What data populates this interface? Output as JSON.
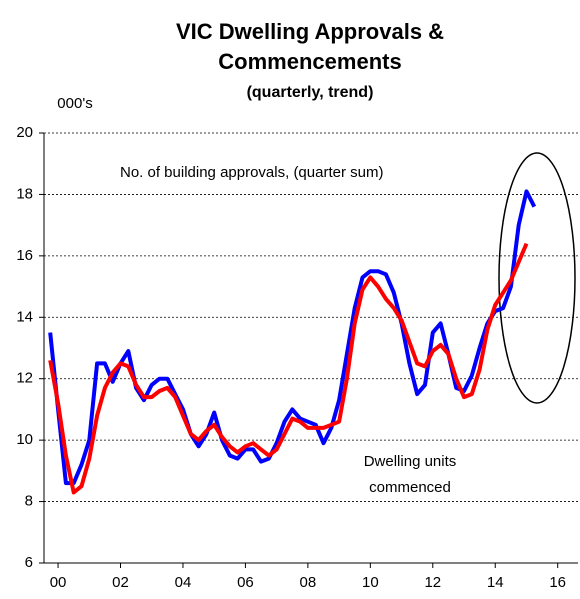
{
  "chart_data": {
    "type": "line",
    "title": [
      "VIC Dwelling Approvals &",
      "Commencements"
    ],
    "subtitle": "(quarterly, trend)",
    "y_label": "000's",
    "x": [
      1999.75,
      2000,
      2000.25,
      2000.5,
      2000.75,
      2001,
      2001.25,
      2001.5,
      2001.75,
      2002,
      2002.25,
      2002.5,
      2002.75,
      2003,
      2003.25,
      2003.5,
      2003.75,
      2004,
      2004.25,
      2004.5,
      2004.75,
      2005,
      2005.25,
      2005.5,
      2005.75,
      2006,
      2006.25,
      2006.5,
      2006.75,
      2007,
      2007.25,
      2007.5,
      2007.75,
      2008,
      2008.25,
      2008.5,
      2008.75,
      2009,
      2009.25,
      2009.5,
      2009.75,
      2010,
      2010.25,
      2010.5,
      2010.75,
      2011,
      2011.25,
      2011.5,
      2011.75,
      2012,
      2012.25,
      2012.5,
      2012.75,
      2013,
      2013.25,
      2013.5,
      2013.75,
      2014,
      2014.25,
      2014.5,
      2014.75,
      2015,
      2015.25
    ],
    "series": [
      {
        "name": "No. of building approvals, (quarter sum)",
        "color": "#0000ff",
        "values": [
          13.5,
          11.0,
          8.6,
          8.6,
          9.2,
          10.0,
          12.5,
          12.5,
          11.9,
          12.5,
          12.9,
          11.7,
          11.3,
          11.8,
          12.0,
          12.0,
          11.5,
          11.0,
          10.2,
          9.8,
          10.2,
          10.9,
          10.0,
          9.5,
          9.4,
          9.7,
          9.7,
          9.3,
          9.4,
          9.9,
          10.6,
          11.0,
          10.7,
          10.6,
          10.5,
          9.9,
          10.4,
          11.3,
          12.8,
          14.3,
          15.3,
          15.5,
          15.5,
          15.4,
          14.8,
          13.8,
          12.5,
          11.5,
          11.8,
          13.5,
          13.8,
          12.8,
          11.7,
          11.6,
          12.1,
          13.0,
          13.8,
          14.2,
          14.3,
          15.0,
          17.0,
          18.1,
          17.6
        ]
      },
      {
        "name": "Dwelling units commenced",
        "color": "#ff0000",
        "values": [
          12.6,
          11.2,
          9.5,
          8.3,
          8.5,
          9.4,
          10.8,
          11.7,
          12.2,
          12.5,
          12.4,
          11.8,
          11.4,
          11.4,
          11.6,
          11.7,
          11.4,
          10.8,
          10.2,
          10.0,
          10.3,
          10.5,
          10.1,
          9.8,
          9.6,
          9.8,
          9.9,
          9.7,
          9.5,
          9.7,
          10.2,
          10.7,
          10.6,
          10.4,
          10.4,
          10.4,
          10.5,
          10.6,
          12.0,
          13.8,
          14.9,
          15.3,
          15.0,
          14.6,
          14.3,
          13.9,
          13.2,
          12.5,
          12.4,
          12.9,
          13.1,
          12.8,
          12.0,
          11.4,
          11.5,
          12.3,
          13.6,
          14.4,
          14.8,
          15.2,
          15.8,
          16.4,
          null
        ]
      }
    ],
    "annotations": [
      {
        "text": [
          "No. of building approvals, (quarter sum)"
        ],
        "color": "#0000ff"
      },
      {
        "text": [
          "Dwelling units",
          "commenced"
        ],
        "color": "#ff0000"
      }
    ],
    "xlim": [
      1999.55,
      2016.65
    ],
    "xticks": [
      {
        "value": 2000,
        "label": "00"
      },
      {
        "value": 2002,
        "label": "02"
      },
      {
        "value": 2004,
        "label": "04"
      },
      {
        "value": 2006,
        "label": "06"
      },
      {
        "value": 2008,
        "label": "08"
      },
      {
        "value": 2010,
        "label": "10"
      },
      {
        "value": 2012,
        "label": "12"
      },
      {
        "value": 2014,
        "label": "14"
      },
      {
        "value": 2016,
        "label": "16"
      }
    ],
    "ylim": [
      6,
      20
    ],
    "yticks": [
      6,
      8,
      10,
      12,
      14,
      16,
      18,
      20
    ],
    "grid": true
  }
}
